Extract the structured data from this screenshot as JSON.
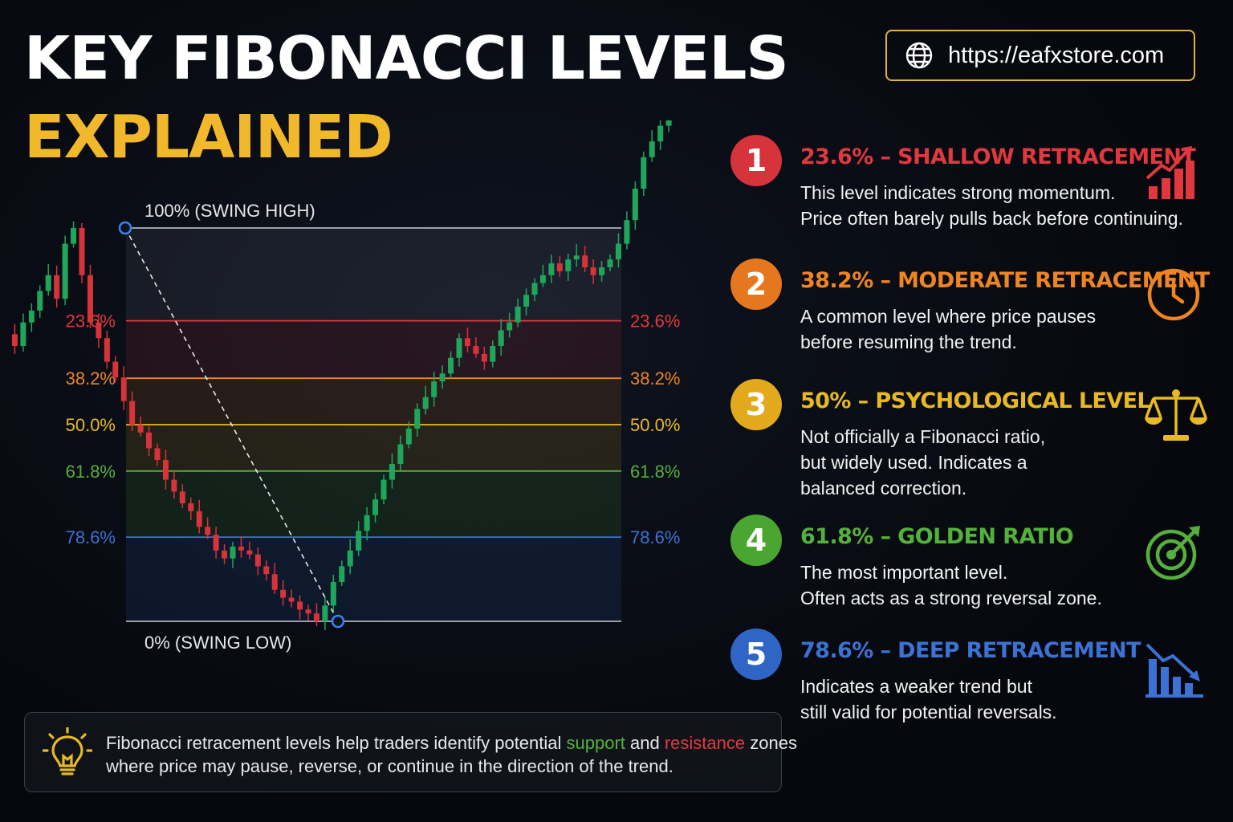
{
  "title": {
    "line1": "KEY FIBONACCI LEVELS",
    "line2": "EXPLAINED"
  },
  "website": {
    "icon": "globe-icon",
    "url": "https://eafxstore.com"
  },
  "chart_data": {
    "type": "candlestick-fibonacci",
    "swing_high_label": "100% (SWING HIGH)",
    "swing_low_label": "0% (SWING LOW)",
    "levels": [
      {
        "label": "23.6%",
        "value": 23.6,
        "color": "#e0383e"
      },
      {
        "label": "38.2%",
        "value": 38.2,
        "color": "#ee8424"
      },
      {
        "label": "50.0%",
        "value": 50.0,
        "color": "#e8b923"
      },
      {
        "label": "61.8%",
        "value": 61.8,
        "color": "#54b13b"
      },
      {
        "label": "78.6%",
        "value": 78.6,
        "color": "#3b72d4"
      }
    ],
    "bull_color": "#1fa65a",
    "bear_color": "#d6333a",
    "price_path": [
      73,
      70,
      76,
      79,
      84,
      88,
      82,
      96,
      100,
      88,
      76,
      72,
      66,
      62,
      56,
      50,
      48,
      44,
      41,
      36,
      33,
      30,
      28,
      24,
      22,
      18,
      16,
      19,
      18,
      17,
      14,
      12,
      8,
      6,
      5,
      3,
      2,
      0,
      4,
      10,
      14,
      18,
      23,
      27,
      31,
      36,
      40,
      45,
      49,
      54,
      57,
      61,
      63,
      67,
      72,
      70,
      68,
      66,
      70,
      74,
      76,
      80,
      83,
      86,
      88,
      91,
      89,
      92,
      93,
      90,
      88,
      90,
      92,
      96,
      102,
      110,
      118,
      122,
      126,
      129,
      132,
      134
    ]
  },
  "levels_info": [
    {
      "number": "1",
      "color": "#e0383e",
      "title": "23.6% – SHALLOW RETRACEMENT",
      "lines": [
        "This level indicates strong momentum.",
        "Price often barely pulls back before continuing."
      ],
      "icon": "rising-bar-chart-icon"
    },
    {
      "number": "2",
      "color": "#ee8424",
      "title": "38.2% – MODERATE RETRACEMENT",
      "lines": [
        "A common level where price pauses",
        "before resuming the trend."
      ],
      "icon": "clock-icon"
    },
    {
      "number": "3",
      "color": "#e8b923",
      "title": "50% – PSYCHOLOGICAL LEVEL",
      "lines": [
        "Not officially a Fibonacci ratio,",
        "but widely used. Indicates a",
        "balanced correction."
      ],
      "icon": "balance-scale-icon"
    },
    {
      "number": "4",
      "color": "#54b13b",
      "title": "61.8% – GOLDEN RATIO",
      "lines": [
        "The most important level.",
        "Often acts as a strong reversal zone."
      ],
      "icon": "target-icon"
    },
    {
      "number": "5",
      "color": "#3b72d4",
      "title": "78.6% – DEEP RETRACEMENT",
      "lines": [
        "Indicates a weaker trend but",
        "still valid for potential reversals."
      ],
      "icon": "falling-bar-chart-icon"
    }
  ],
  "note": {
    "icon": "lightbulb-icon",
    "before": "Fibonacci retracement levels help traders identify potential ",
    "support": "support",
    "middle": " and ",
    "resistance": "resistance",
    "after": " zones",
    "line2": "where price may pause, reverse, or continue in the direction of the trend.",
    "support_color": "#54b13b",
    "resistance_color": "#e0383e"
  }
}
